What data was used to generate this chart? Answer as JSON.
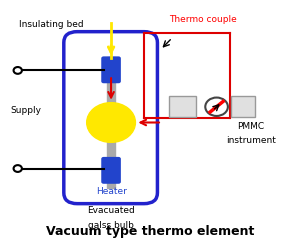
{
  "bg_color": "#ffffff",
  "title": "Vacuum type thermo element",
  "title_fontsize": 9,
  "bulb_ec": "#2222cc",
  "heater_color": "#2244cc",
  "yellow": "#FFE800",
  "gray_rod": "#aaaaaa",
  "red": "#dd0000",
  "black": "#000000",
  "label_insulating": "Insulating bed",
  "label_thermo": "Thermo couple",
  "label_supply": "Supply",
  "label_heater": "Heater",
  "label_evac1": "Evacuated",
  "label_evac2": "galss bulb",
  "label_pmmc1": "PMMC",
  "label_pmmc2": "instrument"
}
